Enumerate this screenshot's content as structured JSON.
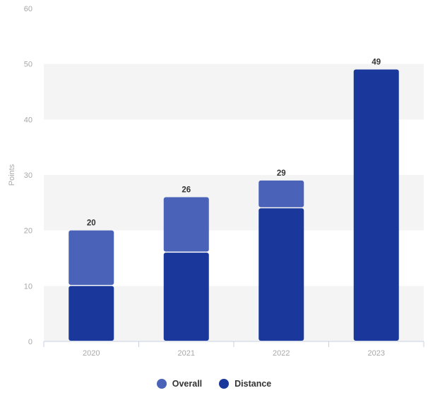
{
  "chart_data": {
    "type": "bar",
    "stacked": true,
    "categories": [
      "2020",
      "2021",
      "2022",
      "2023"
    ],
    "series": [
      {
        "name": "Overall",
        "values": [
          10,
          10,
          5,
          0
        ],
        "color": "#4a63b8"
      },
      {
        "name": "Distance",
        "values": [
          10,
          16,
          24,
          49
        ],
        "color": "#1a389c"
      }
    ],
    "totals": [
      20,
      26,
      29,
      49
    ],
    "ylabel": "Points",
    "ylim": [
      0,
      60
    ],
    "yticks": [
      0,
      10,
      20,
      30,
      40,
      50,
      60
    ],
    "grid": "alternating bands",
    "legend_position": "bottom"
  }
}
